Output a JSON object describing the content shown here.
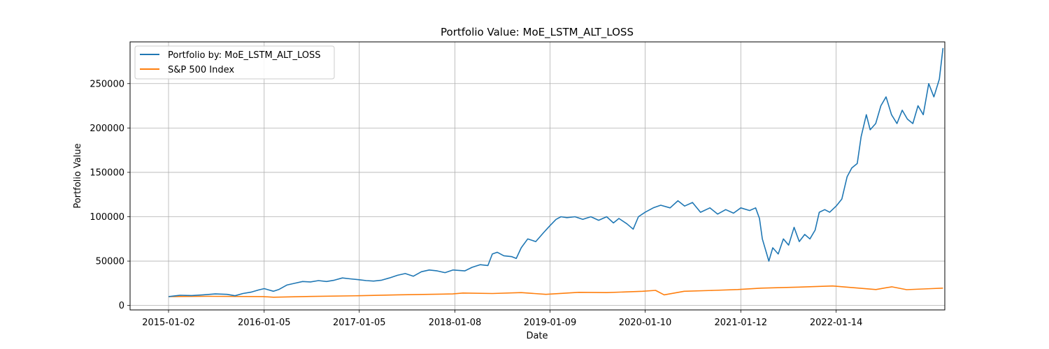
{
  "chart_data": {
    "type": "line",
    "title": "Portfolio Value: MoE_LSTM_ALT_LOSS",
    "xlabel": "Date",
    "ylabel": "Portfolio Value",
    "x_ticks": [
      "2015-01-02",
      "2016-01-05",
      "2017-01-05",
      "2018-01-08",
      "2019-01-09",
      "2020-01-10",
      "2021-01-12",
      "2022-01-14"
    ],
    "y_ticks": [
      "0",
      "50000",
      "100000",
      "150000",
      "200000",
      "250000"
    ],
    "ylim": [
      -5000,
      297000
    ],
    "xlim": [
      "2014-08-07",
      "2023-03-08"
    ],
    "grid": true,
    "legend_position": "top-left",
    "series": [
      {
        "name": "Portfolio by: MoE_LSTM_ALT_LOSS",
        "color": "#1f77b4",
        "points": [
          [
            "2015-01-02",
            10000
          ],
          [
            "2015-02-15",
            11500
          ],
          [
            "2015-04-01",
            11200
          ],
          [
            "2015-05-15",
            12000
          ],
          [
            "2015-07-01",
            13000
          ],
          [
            "2015-08-15",
            12500
          ],
          [
            "2015-09-15",
            11000
          ],
          [
            "2015-10-15",
            13500
          ],
          [
            "2015-11-15",
            15000
          ],
          [
            "2015-12-15",
            17500
          ],
          [
            "2016-01-05",
            19000
          ],
          [
            "2016-02-10",
            16000
          ],
          [
            "2016-03-01",
            18000
          ],
          [
            "2016-04-01",
            23000
          ],
          [
            "2016-05-01",
            25000
          ],
          [
            "2016-06-01",
            27000
          ],
          [
            "2016-07-01",
            26500
          ],
          [
            "2016-08-01",
            28000
          ],
          [
            "2016-09-01",
            27000
          ],
          [
            "2016-10-01",
            28500
          ],
          [
            "2016-11-01",
            31000
          ],
          [
            "2016-12-01",
            30000
          ],
          [
            "2017-01-05",
            29000
          ],
          [
            "2017-02-01",
            28000
          ],
          [
            "2017-03-01",
            27500
          ],
          [
            "2017-04-01",
            28500
          ],
          [
            "2017-05-01",
            31000
          ],
          [
            "2017-06-01",
            34000
          ],
          [
            "2017-07-01",
            36000
          ],
          [
            "2017-08-01",
            33000
          ],
          [
            "2017-09-01",
            38000
          ],
          [
            "2017-10-01",
            40000
          ],
          [
            "2017-11-01",
            39000
          ],
          [
            "2017-12-01",
            37000
          ],
          [
            "2018-01-01",
            40000
          ],
          [
            "2018-02-15",
            39000
          ],
          [
            "2018-03-15",
            43000
          ],
          [
            "2018-04-15",
            46000
          ],
          [
            "2018-05-15",
            45000
          ],
          [
            "2018-06-01",
            58000
          ],
          [
            "2018-06-20",
            60000
          ],
          [
            "2018-07-15",
            56000
          ],
          [
            "2018-08-15",
            55000
          ],
          [
            "2018-09-01",
            53000
          ],
          [
            "2018-09-20",
            65000
          ],
          [
            "2018-10-15",
            75000
          ],
          [
            "2018-11-15",
            72000
          ],
          [
            "2018-12-15",
            82000
          ],
          [
            "2019-01-09",
            90000
          ],
          [
            "2019-02-01",
            97000
          ],
          [
            "2019-02-20",
            100000
          ],
          [
            "2019-03-15",
            99000
          ],
          [
            "2019-04-15",
            100000
          ],
          [
            "2019-05-15",
            97000
          ],
          [
            "2019-06-15",
            100000
          ],
          [
            "2019-07-15",
            96000
          ],
          [
            "2019-08-15",
            100000
          ],
          [
            "2019-09-10",
            93000
          ],
          [
            "2019-10-01",
            98000
          ],
          [
            "2019-11-01",
            92000
          ],
          [
            "2019-11-25",
            86000
          ],
          [
            "2019-12-15",
            100000
          ],
          [
            "2020-01-10",
            105000
          ],
          [
            "2020-02-10",
            110000
          ],
          [
            "2020-03-10",
            113000
          ],
          [
            "2020-04-15",
            110000
          ],
          [
            "2020-05-15",
            118000
          ],
          [
            "2020-06-10",
            112000
          ],
          [
            "2020-07-10",
            116000
          ],
          [
            "2020-08-10",
            105000
          ],
          [
            "2020-09-15",
            110000
          ],
          [
            "2020-10-15",
            103000
          ],
          [
            "2020-11-15",
            108000
          ],
          [
            "2020-12-15",
            104000
          ],
          [
            "2021-01-12",
            110000
          ],
          [
            "2021-02-15",
            107000
          ],
          [
            "2021-03-10",
            110000
          ],
          [
            "2021-03-25",
            98000
          ],
          [
            "2021-04-05",
            75000
          ],
          [
            "2021-04-20",
            60000
          ],
          [
            "2021-04-30",
            50000
          ],
          [
            "2021-05-15",
            65000
          ],
          [
            "2021-06-05",
            58000
          ],
          [
            "2021-06-25",
            75000
          ],
          [
            "2021-07-15",
            68000
          ],
          [
            "2021-08-05",
            88000
          ],
          [
            "2021-08-25",
            72000
          ],
          [
            "2021-09-15",
            80000
          ],
          [
            "2021-10-05",
            75000
          ],
          [
            "2021-10-25",
            85000
          ],
          [
            "2021-11-10",
            105000
          ],
          [
            "2021-12-01",
            108000
          ],
          [
            "2021-12-20",
            105000
          ],
          [
            "2022-01-14",
            112000
          ],
          [
            "2022-02-05",
            120000
          ],
          [
            "2022-02-25",
            145000
          ],
          [
            "2022-03-15",
            155000
          ],
          [
            "2022-04-05",
            160000
          ],
          [
            "2022-04-20",
            190000
          ],
          [
            "2022-05-10",
            215000
          ],
          [
            "2022-05-25",
            198000
          ],
          [
            "2022-06-15",
            205000
          ],
          [
            "2022-07-05",
            225000
          ],
          [
            "2022-07-25",
            235000
          ],
          [
            "2022-08-15",
            215000
          ],
          [
            "2022-09-05",
            205000
          ],
          [
            "2022-09-25",
            220000
          ],
          [
            "2022-10-15",
            210000
          ],
          [
            "2022-11-05",
            205000
          ],
          [
            "2022-11-25",
            225000
          ],
          [
            "2022-12-15",
            215000
          ],
          [
            "2023-01-05",
            250000
          ],
          [
            "2023-01-25",
            235000
          ],
          [
            "2023-02-15",
            255000
          ],
          [
            "2023-03-01",
            290000
          ]
        ]
      },
      {
        "name": "S&P 500 Index",
        "color": "#ff7f0e",
        "points": [
          [
            "2015-01-02",
            10000
          ],
          [
            "2015-06-01",
            10300
          ],
          [
            "2015-12-31",
            10000
          ],
          [
            "2016-02-10",
            9300
          ],
          [
            "2016-07-01",
            10200
          ],
          [
            "2016-12-31",
            11000
          ],
          [
            "2017-06-01",
            12000
          ],
          [
            "2017-12-31",
            13000
          ],
          [
            "2018-02-08",
            14000
          ],
          [
            "2018-06-01",
            13500
          ],
          [
            "2018-09-20",
            14500
          ],
          [
            "2018-12-24",
            12500
          ],
          [
            "2019-04-30",
            14800
          ],
          [
            "2019-08-15",
            14500
          ],
          [
            "2019-12-31",
            16000
          ],
          [
            "2020-02-19",
            17000
          ],
          [
            "2020-03-23",
            12000
          ],
          [
            "2020-06-08",
            16000
          ],
          [
            "2020-10-01",
            17000
          ],
          [
            "2020-12-31",
            18000
          ],
          [
            "2021-04-01",
            19500
          ],
          [
            "2021-08-01",
            20500
          ],
          [
            "2021-12-31",
            22000
          ],
          [
            "2022-06-16",
            18000
          ],
          [
            "2022-08-16",
            21000
          ],
          [
            "2022-10-12",
            17800
          ],
          [
            "2023-01-15",
            19000
          ],
          [
            "2023-03-01",
            19500
          ]
        ]
      }
    ]
  }
}
